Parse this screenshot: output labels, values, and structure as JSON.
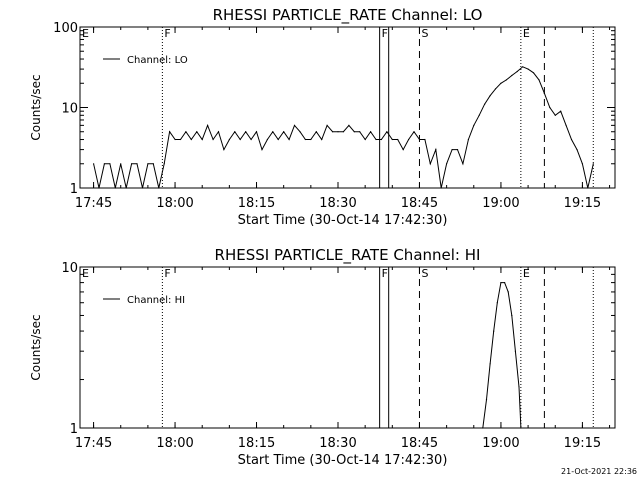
{
  "footer": {
    "timestamp": "21-Oct-2021 22:36"
  },
  "chart_data": [
    {
      "type": "line",
      "title": "RHESSI PARTICLE_RATE Channel: LO",
      "xlabel": "Start Time (30-Oct-14 17:42:30)",
      "ylabel": "Counts/sec",
      "yscale": "log",
      "ylim": [
        1,
        100
      ],
      "xlim": [
        "17:42:30",
        "19:21:00"
      ],
      "x_ticks": [
        "17:45",
        "18:00",
        "18:15",
        "18:30",
        "18:45",
        "19:00",
        "19:15"
      ],
      "y_ticks": [
        "1",
        "10",
        "100"
      ],
      "legend": {
        "position": "top-left",
        "entries": [
          "Channel: LO"
        ]
      },
      "event_markers": [
        {
          "label": "E",
          "time": "17:42:30",
          "style": "none"
        },
        {
          "label": "F",
          "time": "17:57:40",
          "style": "dotted"
        },
        {
          "label": "F",
          "time": "18:37:40",
          "style": "solid"
        },
        {
          "label": "",
          "time": "18:39:20",
          "style": "solid"
        },
        {
          "label": "S",
          "time": "18:45:00",
          "style": "dashed"
        },
        {
          "label": "E",
          "time": "19:03:40",
          "style": "dotted"
        },
        {
          "label": "",
          "time": "19:08:00",
          "style": "dashed"
        },
        {
          "label": "",
          "time": "19:17:00",
          "style": "dotted"
        }
      ],
      "series": [
        {
          "name": "Channel: LO",
          "x": [
            "17:45",
            "17:46",
            "17:47",
            "17:48",
            "17:49",
            "17:50",
            "17:51",
            "17:52",
            "17:53",
            "17:54",
            "17:55",
            "17:56",
            "17:57",
            "17:58",
            "17:59",
            "18:00",
            "18:01",
            "18:02",
            "18:03",
            "18:04",
            "18:05",
            "18:06",
            "18:07",
            "18:08",
            "18:09",
            "18:10",
            "18:11",
            "18:12",
            "18:13",
            "18:14",
            "18:15",
            "18:16",
            "18:17",
            "18:18",
            "18:19",
            "18:20",
            "18:21",
            "18:22",
            "18:23",
            "18:24",
            "18:25",
            "18:26",
            "18:27",
            "18:28",
            "18:29",
            "18:30",
            "18:31",
            "18:32",
            "18:33",
            "18:34",
            "18:35",
            "18:36",
            "18:37",
            "18:38",
            "18:39",
            "18:40",
            "18:41",
            "18:42",
            "18:43",
            "18:44",
            "18:45",
            "18:46",
            "18:47",
            "18:48",
            "18:49",
            "18:50",
            "18:51",
            "18:52",
            "18:53",
            "18:54",
            "18:55",
            "18:56",
            "18:57",
            "18:58",
            "18:59",
            "19:00",
            "19:01",
            "19:02",
            "19:03",
            "19:04",
            "19:05",
            "19:06",
            "19:07",
            "19:08",
            "19:09",
            "19:10",
            "19:11",
            "19:12",
            "19:13",
            "19:14",
            "19:15",
            "19:16",
            "19:17"
          ],
          "y": [
            2,
            1,
            2,
            2,
            1,
            2,
            1,
            2,
            2,
            1,
            2,
            2,
            1,
            2,
            5,
            4,
            4,
            5,
            4,
            5,
            4,
            6,
            4,
            5,
            3,
            4,
            5,
            4,
            5,
            4,
            5,
            3,
            4,
            5,
            4,
            5,
            4,
            6,
            5,
            4,
            4,
            5,
            4,
            6,
            5,
            5,
            5,
            6,
            5,
            5,
            4,
            5,
            4,
            4,
            5,
            4,
            4,
            3,
            4,
            5,
            4,
            4,
            2,
            3,
            1,
            2,
            3,
            3,
            2,
            4,
            6,
            8,
            11,
            14,
            17,
            20,
            22,
            25,
            28,
            32,
            30,
            27,
            22,
            15,
            10,
            8,
            9,
            6,
            4,
            3,
            2,
            1,
            2
          ]
        }
      ]
    },
    {
      "type": "line",
      "title": "RHESSI PARTICLE_RATE Channel: HI",
      "xlabel": "Start Time (30-Oct-14 17:42:30)",
      "ylabel": "Counts/sec",
      "yscale": "log",
      "ylim": [
        1,
        10
      ],
      "xlim": [
        "17:42:30",
        "19:21:00"
      ],
      "x_ticks": [
        "17:45",
        "18:00",
        "18:15",
        "18:30",
        "18:45",
        "19:00",
        "19:15"
      ],
      "y_ticks": [
        "1",
        "10"
      ],
      "legend": {
        "position": "top-left",
        "entries": [
          "Channel: HI"
        ]
      },
      "event_markers": [
        {
          "label": "E",
          "time": "17:42:30",
          "style": "none"
        },
        {
          "label": "F",
          "time": "17:57:40",
          "style": "dotted"
        },
        {
          "label": "F",
          "time": "18:37:40",
          "style": "solid"
        },
        {
          "label": "",
          "time": "18:39:20",
          "style": "solid"
        },
        {
          "label": "S",
          "time": "18:45:00",
          "style": "dashed"
        },
        {
          "label": "E",
          "time": "19:03:40",
          "style": "dotted"
        },
        {
          "label": "",
          "time": "19:08:00",
          "style": "dashed"
        },
        {
          "label": "",
          "time": "19:17:00",
          "style": "dotted"
        }
      ],
      "series": [
        {
          "name": "Channel: HI",
          "x": [
            "18:56:40",
            "18:57:20",
            "18:58:00",
            "18:58:40",
            "18:59:20",
            "19:00:00",
            "19:00:40",
            "19:01:20",
            "19:02:00",
            "19:02:40",
            "19:03:20",
            "19:03:40"
          ],
          "y": [
            1,
            1.5,
            2.5,
            4,
            6,
            8,
            8,
            7,
            5,
            3,
            1.8,
            1
          ]
        }
      ]
    }
  ]
}
